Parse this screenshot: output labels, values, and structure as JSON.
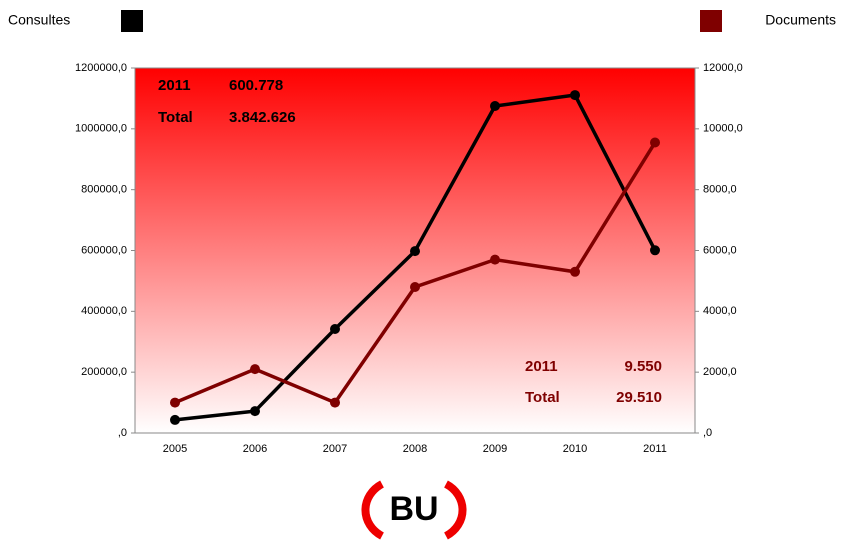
{
  "chart_data": {
    "type": "line",
    "categories": [
      "2005",
      "2006",
      "2007",
      "2008",
      "2009",
      "2010",
      "2011"
    ],
    "series": [
      {
        "name": "Consultes",
        "color": "#000000",
        "values": [
          43000,
          72000,
          342000,
          598000,
          1075000,
          1111000,
          600778
        ]
      },
      {
        "name": "Documents",
        "color": "#7f0000",
        "axis": "y2",
        "values": [
          1000,
          2100,
          1000,
          4800,
          5700,
          5300,
          9550
        ]
      }
    ],
    "ylim": [
      0,
      1200000
    ],
    "yticks": [
      {
        "value": 0,
        "label": ",0"
      },
      {
        "value": 200000,
        "label": "200000,0"
      },
      {
        "value": 400000,
        "label": "400000,0"
      },
      {
        "value": 600000,
        "label": "600000,0"
      },
      {
        "value": 800000,
        "label": "800000,0"
      },
      {
        "value": 1000000,
        "label": "1000000,0"
      },
      {
        "value": 1200000,
        "label": "1200000,0"
      }
    ],
    "y2lim": [
      0,
      12000
    ],
    "y2ticks": [
      {
        "value": 0,
        "label": ",0"
      },
      {
        "value": 2000,
        "label": "2000,0"
      },
      {
        "value": 4000,
        "label": "4000,0"
      },
      {
        "value": 6000,
        "label": "6000,0"
      },
      {
        "value": 8000,
        "label": "8000,0"
      },
      {
        "value": 10000,
        "label": "10000,0"
      },
      {
        "value": 12000,
        "label": "12000,0"
      }
    ],
    "annotations": [
      [
        "2011",
        "600.778"
      ],
      [
        "Total",
        "3.842.626"
      ],
      [
        "2011",
        "9.550"
      ],
      [
        "Total",
        "29.510"
      ]
    ],
    "logo": "BU"
  }
}
